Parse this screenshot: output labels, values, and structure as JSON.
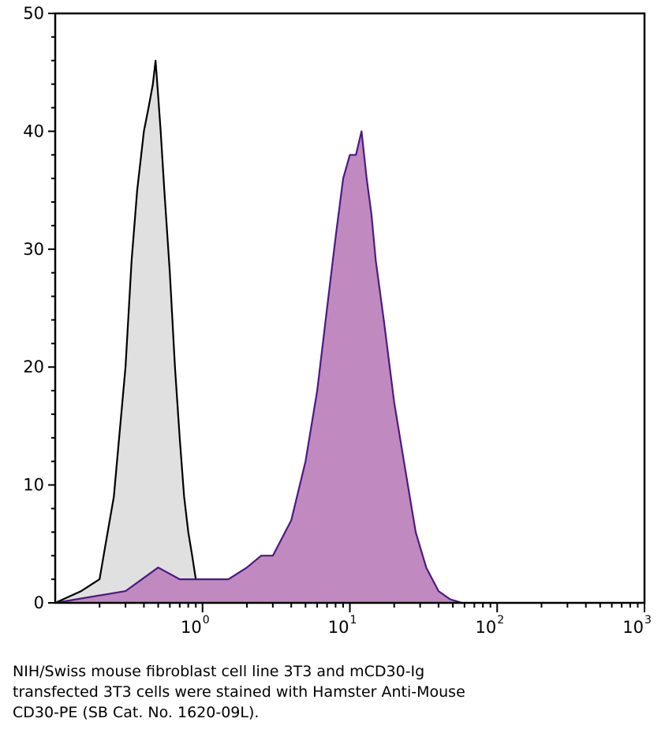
{
  "chart_data": {
    "type": "area",
    "title": "",
    "xlabel": "",
    "ylabel": "",
    "x_scale": "log",
    "xlim": [
      0.1,
      1000
    ],
    "ylim": [
      0,
      50
    ],
    "y_ticks": [
      "0",
      "10",
      "20",
      "30",
      "40",
      "50"
    ],
    "x_ticks": [
      {
        "value": 1,
        "base": "10",
        "exp": "0"
      },
      {
        "value": 10,
        "base": "10",
        "exp": "1"
      },
      {
        "value": 100,
        "base": "10",
        "exp": "2"
      },
      {
        "value": 1000,
        "base": "10",
        "exp": "3"
      }
    ],
    "grid": false,
    "legend": "none",
    "series": [
      {
        "fill": "#e0e0e0",
        "stroke": "#000000",
        "x": [
          0.1,
          0.15,
          0.2,
          0.22,
          0.25,
          0.3,
          0.33,
          0.36,
          0.4,
          0.43,
          0.46,
          0.48,
          0.5,
          0.52,
          0.55,
          0.6,
          0.65,
          0.7,
          0.75,
          0.8,
          0.85,
          0.9,
          1.0,
          1.1
        ],
        "y": [
          0,
          1,
          2,
          5,
          9,
          20,
          29,
          35,
          40,
          42,
          44,
          46,
          43,
          40,
          35,
          28,
          20,
          14,
          9,
          6,
          4,
          2,
          1,
          0
        ]
      },
      {
        "fill": "#c08ac0",
        "stroke": "#4b1a82",
        "x": [
          0.1,
          0.3,
          0.5,
          0.7,
          1.0,
          1.5,
          2.0,
          2.5,
          3.0,
          4.0,
          5.0,
          6.0,
          7.0,
          8.0,
          9.0,
          10.0,
          11.0,
          12.0,
          13.0,
          14.0,
          15.0,
          17.0,
          20.0,
          24.0,
          28.0,
          33.0,
          40.0,
          48.0,
          58.0
        ],
        "y": [
          0,
          1,
          3,
          2,
          2,
          2,
          3,
          4,
          4,
          7,
          12,
          18,
          25,
          31,
          36,
          38,
          38,
          40,
          36,
          33,
          29,
          24,
          17,
          11,
          6,
          3,
          1,
          0.3,
          0
        ]
      }
    ]
  },
  "caption": {
    "line1": "NIH/Swiss mouse fibroblast cell line 3T3 and mCD30-Ig",
    "line2": "transfected 3T3 cells were stained with Hamster Anti-Mouse",
    "line3": "CD30-PE (SB Cat. No. 1620-09L)."
  }
}
